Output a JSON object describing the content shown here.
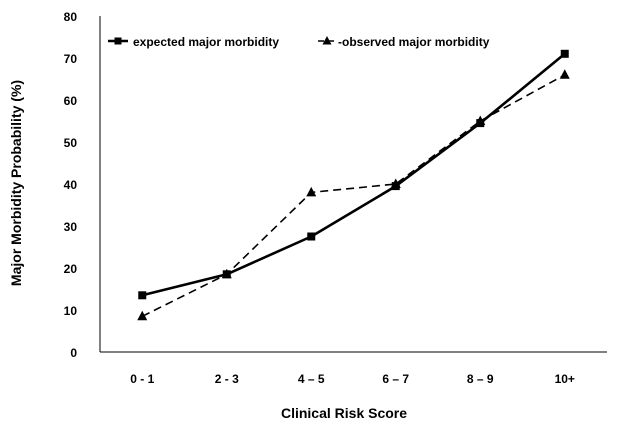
{
  "chart_data": {
    "type": "line",
    "categories": [
      "0 - 1",
      "2 - 3",
      "4 – 5",
      "6 – 7",
      "8 – 9",
      "10+"
    ],
    "series": [
      {
        "name": "expected major morbidity",
        "values": [
          13.5,
          18.5,
          27.5,
          39.5,
          54.5,
          71
        ],
        "marker": "square",
        "dash": "solid"
      },
      {
        "name": "observed major morbidity",
        "values": [
          8.5,
          18.5,
          38,
          40,
          55,
          66
        ],
        "marker": "triangle",
        "dash": "dashed"
      }
    ],
    "xlabel": "Clinical Risk Score",
    "ylabel": "Major Morbidity Probability (%)",
    "ylim": [
      0,
      80
    ],
    "yticks": [
      0,
      10,
      20,
      30,
      40,
      50,
      60,
      70,
      80
    ],
    "grid": false,
    "legend_position": "top-left"
  },
  "legend": {
    "labels": [
      "expected major morbidity",
      "-observed major morbidity"
    ]
  }
}
